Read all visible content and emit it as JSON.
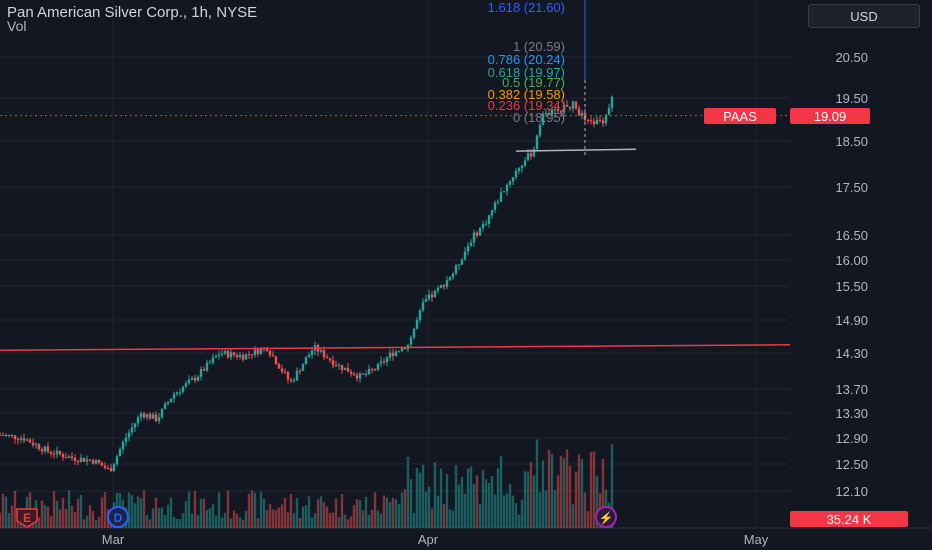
{
  "header": {
    "title": "Pan American Silver Corp., 1h, NYSE",
    "vol_label": "Vol",
    "currency": "USD"
  },
  "price_tag": {
    "ticker": "PAAS",
    "price": "19.09"
  },
  "volume_tag": "35.24 K",
  "markers": {
    "earnings": "E",
    "dividend": "D",
    "flash": "⚡"
  },
  "colors": {
    "background": "#131722",
    "up": "#26a69a",
    "down": "#ef5350",
    "resistance_line": "#f23645",
    "support_line": "#b2b5be",
    "grid": "#1f2430"
  },
  "chart_data": {
    "type": "candlestick",
    "title": "Pan American Silver Corp., 1h, NYSE",
    "y_axis_ticks": [
      "20.50",
      "19.50",
      "18.50",
      "17.50",
      "16.50",
      "16.00",
      "15.50",
      "14.90",
      "14.30",
      "13.70",
      "13.30",
      "12.90",
      "12.50",
      "12.10"
    ],
    "x_axis_ticks": [
      "Mar",
      "Apr",
      "May"
    ],
    "ylim": [
      12.0,
      20.8
    ],
    "last_price": 19.09,
    "fibonacci_levels": [
      {
        "label": "1.618 (21.60)",
        "color": "#2962ff"
      },
      {
        "label": "1 (20.59)",
        "color": "#787b86"
      },
      {
        "label": "0.786 (20.24)",
        "color": "#2196f3"
      },
      {
        "label": "0.618 (19.97)",
        "color": "#26a69a"
      },
      {
        "label": "0.5 (19.77)",
        "color": "#4caf50"
      },
      {
        "label": "0.382 (19.58)",
        "color": "#ff9800"
      },
      {
        "label": "0.236 (19.34)",
        "color": "#f23645"
      },
      {
        "label": "0 (18.95)",
        "color": "#787b86"
      }
    ],
    "resistance_line": {
      "from": 14.35,
      "to": 14.45
    },
    "support_line": {
      "from": 18.28,
      "to": 18.32
    },
    "close_path": [
      [
        0,
        12.95
      ],
      [
        0.03,
        12.9
      ],
      [
        0.06,
        12.7
      ],
      [
        0.09,
        12.6
      ],
      [
        0.12,
        12.55
      ],
      [
        0.14,
        12.4
      ],
      [
        0.16,
        12.9
      ],
      [
        0.18,
        13.3
      ],
      [
        0.2,
        13.2
      ],
      [
        0.22,
        13.6
      ],
      [
        0.25,
        13.9
      ],
      [
        0.28,
        14.3
      ],
      [
        0.31,
        14.25
      ],
      [
        0.34,
        14.4
      ],
      [
        0.37,
        13.8
      ],
      [
        0.4,
        14.4
      ],
      [
        0.43,
        14.1
      ],
      [
        0.46,
        13.9
      ],
      [
        0.48,
        14.05
      ],
      [
        0.5,
        14.3
      ],
      [
        0.52,
        14.45
      ],
      [
        0.54,
        15.2
      ],
      [
        0.56,
        15.45
      ],
      [
        0.58,
        15.8
      ],
      [
        0.6,
        16.4
      ],
      [
        0.62,
        16.8
      ],
      [
        0.64,
        17.4
      ],
      [
        0.66,
        17.9
      ],
      [
        0.68,
        18.3
      ],
      [
        0.69,
        19.1
      ],
      [
        0.71,
        19.2
      ],
      [
        0.73,
        19.35
      ],
      [
        0.75,
        18.9
      ],
      [
        0.77,
        19.0
      ],
      [
        0.78,
        19.5
      ]
    ]
  }
}
